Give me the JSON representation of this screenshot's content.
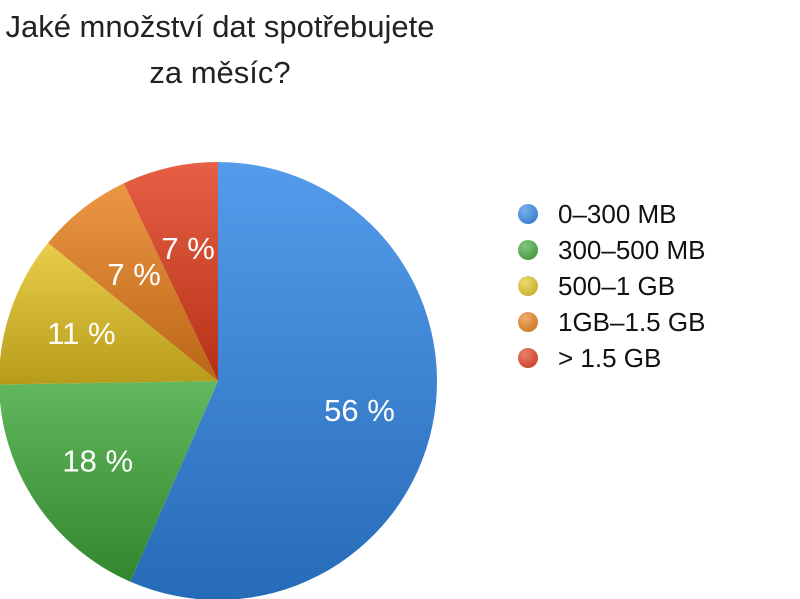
{
  "chart_data": {
    "type": "pie",
    "title": "Jaké množství dat spotřebujete za měsíc?",
    "legend_position": "right",
    "slices": [
      {
        "name": "0–300 MB",
        "value": 56,
        "label": "56 %",
        "color": "#2f86e6"
      },
      {
        "name": "300–500 MB",
        "value": 18,
        "label": "18 %",
        "color": "#3fa83a"
      },
      {
        "name": "500–1 GB",
        "value": 11,
        "label": "11 %",
        "color": "#e3c321"
      },
      {
        "name": "1GB–1.5 GB",
        "value": 7,
        "label": "7 %",
        "color": "#e8801b"
      },
      {
        "name": "> 1.5 GB",
        "value": 7,
        "label": "7 %",
        "color": "#e23d1c"
      }
    ]
  }
}
